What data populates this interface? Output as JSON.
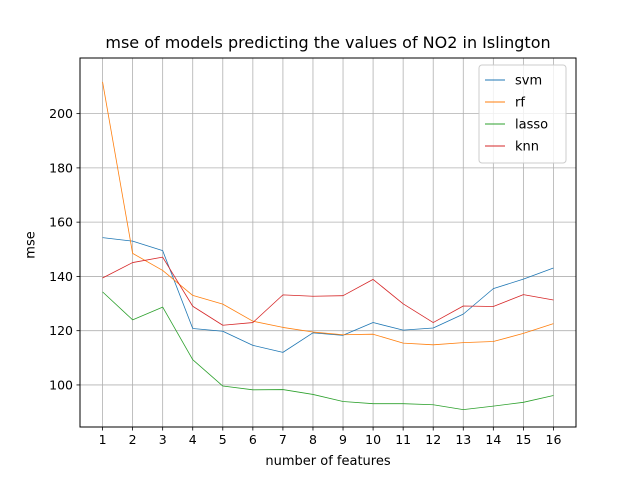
{
  "chart_data": {
    "type": "line",
    "title": "mse of models predicting the values of NO2 in Islington",
    "xlabel": "number of features",
    "ylabel": "mse",
    "x": [
      1,
      2,
      3,
      4,
      5,
      6,
      7,
      8,
      9,
      10,
      11,
      12,
      13,
      14,
      15,
      16
    ],
    "xlim": [
      0.25,
      16.75
    ],
    "ylim": [
      84.5,
      220.5
    ],
    "yticks": [
      100,
      120,
      140,
      160,
      180,
      200
    ],
    "grid": true,
    "legend": "top-right",
    "series": [
      {
        "name": "svm",
        "color": "#1f77b4",
        "values": [
          154.3,
          153.0,
          149.5,
          120.8,
          119.8,
          114.6,
          112.0,
          119.2,
          118.3,
          123.0,
          120.2,
          121.0,
          126.1,
          135.5,
          139.0,
          143.1
        ]
      },
      {
        "name": "rf",
        "color": "#ff7f0e",
        "values": [
          211.7,
          148.5,
          142.2,
          133.0,
          129.8,
          123.5,
          121.2,
          119.5,
          118.5,
          118.7,
          115.4,
          114.8,
          115.6,
          116.0,
          119.0,
          122.6
        ]
      },
      {
        "name": "lasso",
        "color": "#2ca02c",
        "values": [
          134.3,
          124.0,
          128.7,
          109.3,
          99.6,
          98.2,
          98.3,
          96.5,
          93.9,
          93.1,
          93.1,
          92.7,
          90.9,
          92.2,
          93.6,
          96.1
        ]
      },
      {
        "name": "knn",
        "color": "#d62728",
        "values": [
          139.4,
          145.1,
          147.1,
          129.0,
          122.0,
          123.0,
          133.2,
          132.7,
          132.9,
          138.9,
          129.9,
          123.0,
          129.1,
          128.9,
          133.3,
          131.3
        ]
      }
    ]
  }
}
